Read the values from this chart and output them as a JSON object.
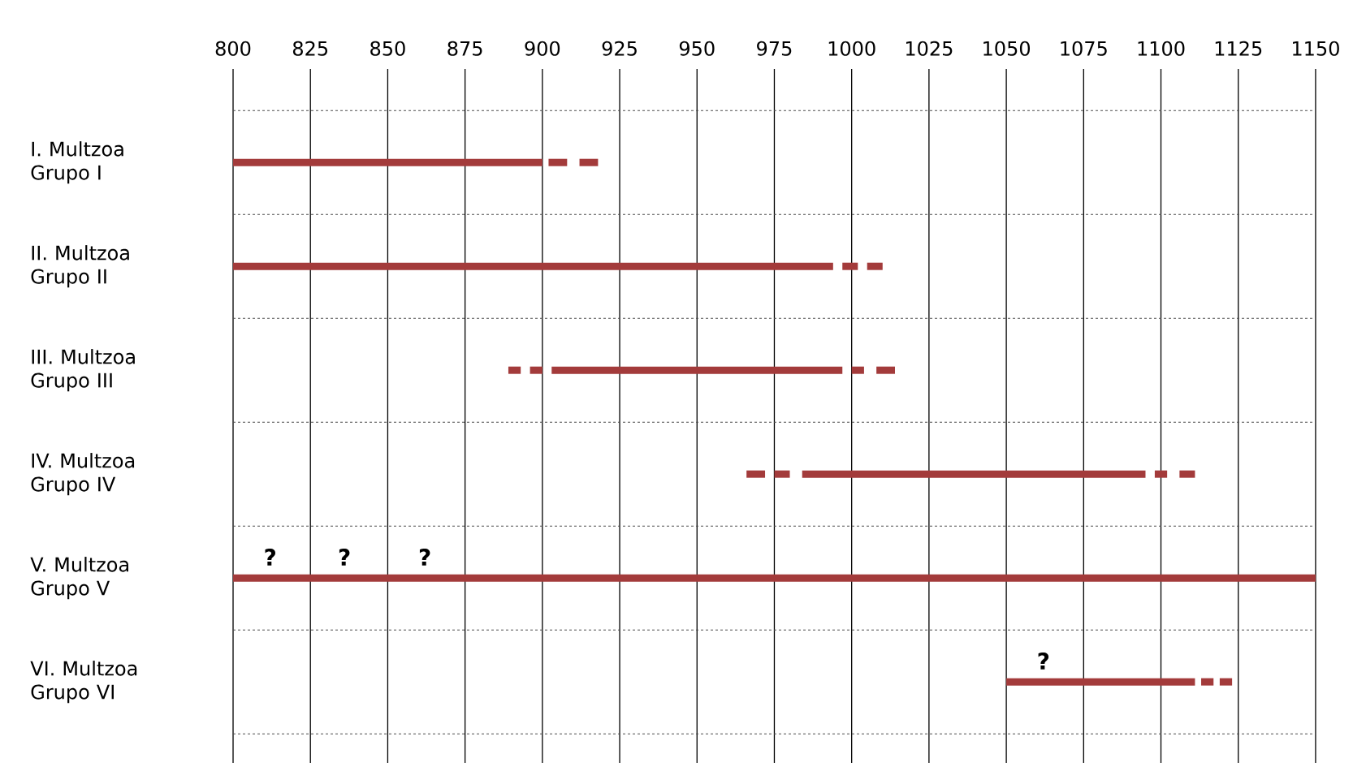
{
  "chart_data": {
    "type": "bar",
    "orientation": "horizontal",
    "categories": [
      "I. Multzoa Grupo I",
      "II. Multzoa Grupo II",
      "III. Multzoa Grupo III",
      "IV. Multzoa Grupo IV",
      "V. Multzoa Grupo V",
      "VI. Multzoa Grupo VI"
    ],
    "series": [
      {
        "color": "#a33b3b",
        "base": [
          null,
          null,
          889,
          966,
          null,
          null
        ],
        "values": [
          null,
          null,
          4,
          6,
          null,
          null
        ]
      },
      {
        "color": "#a33b3b",
        "base": [
          null,
          null,
          896,
          975,
          null,
          null
        ],
        "values": [
          null,
          null,
          4,
          5,
          null,
          null
        ]
      },
      {
        "color": "#a33b3b",
        "base": [
          800,
          800,
          903,
          984,
          800,
          1050
        ],
        "values": [
          100,
          194,
          94,
          111,
          350,
          61
        ]
      },
      {
        "color": "#a33b3b",
        "base": [
          902,
          997,
          1000,
          1098,
          null,
          1113
        ],
        "values": [
          6,
          5,
          4,
          4,
          null,
          4
        ]
      },
      {
        "color": "#a33b3b",
        "base": [
          912,
          1005,
          1008,
          1106,
          null,
          1119
        ],
        "values": [
          6,
          5,
          6,
          5,
          null,
          4
        ]
      }
    ],
    "xlim": [
      800,
      1150
    ],
    "xticks": [
      800,
      825,
      850,
      875,
      900,
      925,
      950,
      975,
      1000,
      1025,
      1050,
      1075,
      1100,
      1125,
      1150
    ],
    "grid": true,
    "annotations": [
      {
        "text": "?",
        "x": 812,
        "y": "V. Multzoa Grupo V"
      },
      {
        "text": "?",
        "x": 836,
        "y": "V. Multzoa Grupo V"
      },
      {
        "text": "?",
        "x": 862,
        "y": "V. Multzoa Grupo V"
      },
      {
        "text": "?",
        "x": 1062,
        "y": "VI. Multzoa Grupo VI"
      }
    ]
  }
}
